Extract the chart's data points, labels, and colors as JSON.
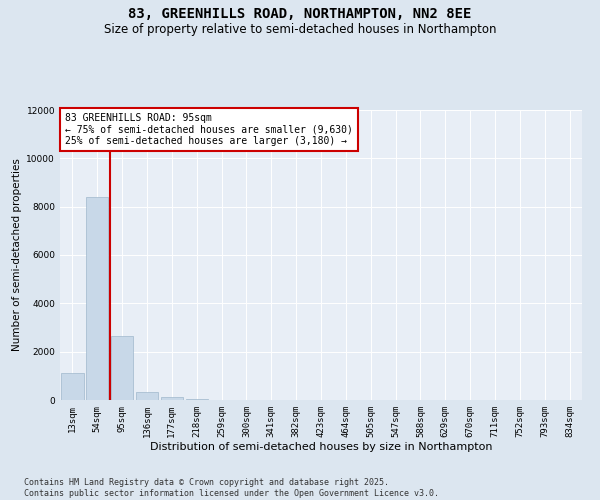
{
  "title": "83, GREENHILLS ROAD, NORTHAMPTON, NN2 8EE",
  "subtitle": "Size of property relative to semi-detached houses in Northampton",
  "xlabel": "Distribution of semi-detached houses by size in Northampton",
  "ylabel": "Number of semi-detached properties",
  "categories": [
    "13sqm",
    "54sqm",
    "95sqm",
    "136sqm",
    "177sqm",
    "218sqm",
    "259sqm",
    "300sqm",
    "341sqm",
    "382sqm",
    "423sqm",
    "464sqm",
    "505sqm",
    "547sqm",
    "588sqm",
    "629sqm",
    "670sqm",
    "711sqm",
    "752sqm",
    "793sqm",
    "834sqm"
  ],
  "values": [
    1100,
    8400,
    2650,
    350,
    130,
    60,
    0,
    0,
    0,
    0,
    0,
    0,
    0,
    0,
    0,
    0,
    0,
    0,
    0,
    0,
    0
  ],
  "bar_color": "#c8d8e8",
  "bar_edge_color": "#a0b8cc",
  "vline_color": "#cc0000",
  "annotation_text": "83 GREENHILLS ROAD: 95sqm\n← 75% of semi-detached houses are smaller (9,630)\n25% of semi-detached houses are larger (3,180) →",
  "annotation_box_color": "#ffffff",
  "annotation_box_edgecolor": "#cc0000",
  "ylim": [
    0,
    12000
  ],
  "yticks": [
    0,
    2000,
    4000,
    6000,
    8000,
    10000,
    12000
  ],
  "background_color": "#dce6f0",
  "plot_background_color": "#e8eef6",
  "footer": "Contains HM Land Registry data © Crown copyright and database right 2025.\nContains public sector information licensed under the Open Government Licence v3.0.",
  "title_fontsize": 10,
  "subtitle_fontsize": 8.5,
  "xlabel_fontsize": 8,
  "ylabel_fontsize": 7.5,
  "tick_fontsize": 6.5,
  "footer_fontsize": 6,
  "annotation_fontsize": 7
}
